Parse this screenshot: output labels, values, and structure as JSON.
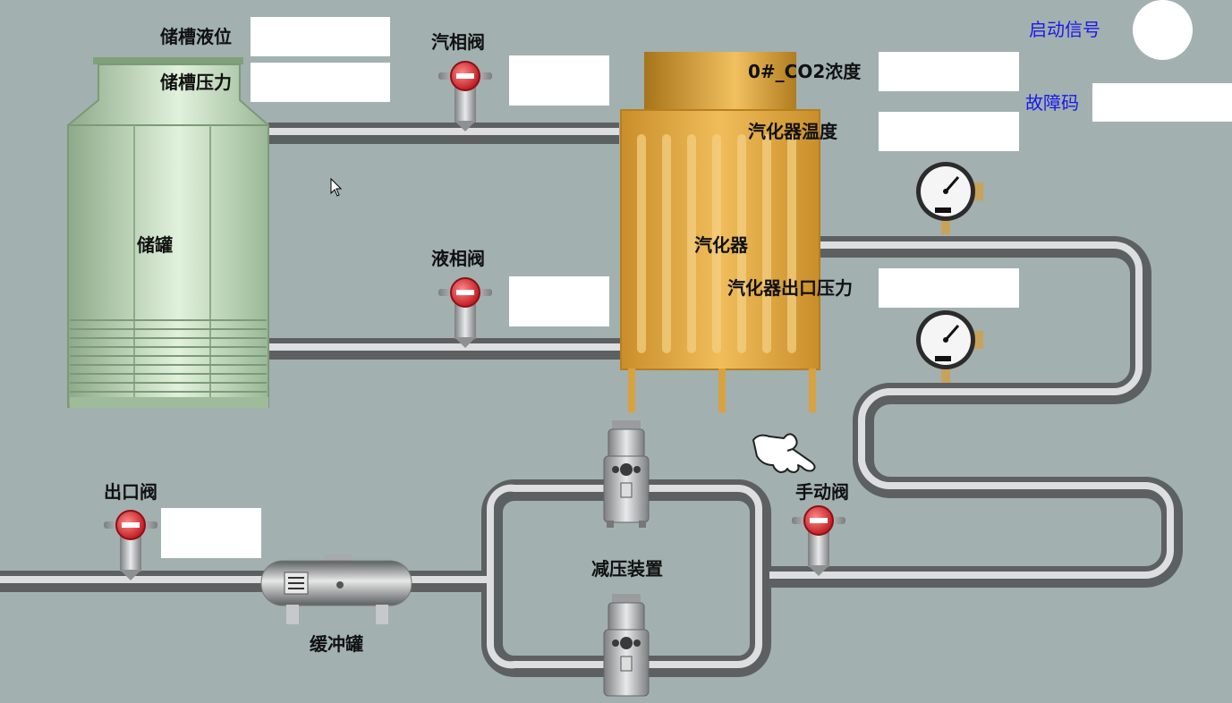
{
  "labels": {
    "tank_level": "储槽液位",
    "tank_pressure": "储槽压力",
    "gas_valve": "汽相阀",
    "liquid_valve": "液相阀",
    "tank": "储罐",
    "vaporizer": "汽化器",
    "co2_concentration": "0#_CO2浓度",
    "vaporizer_temp": "汽化器温度",
    "vaporizer_outlet_pressure": "汽化器出口压力",
    "start_signal": "启动信号",
    "fault_code": "故障码",
    "outlet_valve": "出口阀",
    "manual_valve": "手动阀",
    "pressure_reducer": "减压装置",
    "buffer_tank": "缓冲罐"
  },
  "values": {
    "tank_level": "",
    "tank_pressure": "",
    "gas_valve": "",
    "liquid_valve": "",
    "co2_concentration": "",
    "vaporizer_temp": "",
    "vaporizer_outlet_pressure": "",
    "fault_code": "",
    "outlet_valve": ""
  },
  "colors": {
    "background": "#a2b0b0",
    "label_text": "#111111",
    "status_text": "#1a1ae8",
    "valve_red": "#d9262b",
    "tank_green": "#b9d6b4",
    "vaporizer_orange": "#e0a83a",
    "pipe_gray": "#8e9192"
  }
}
